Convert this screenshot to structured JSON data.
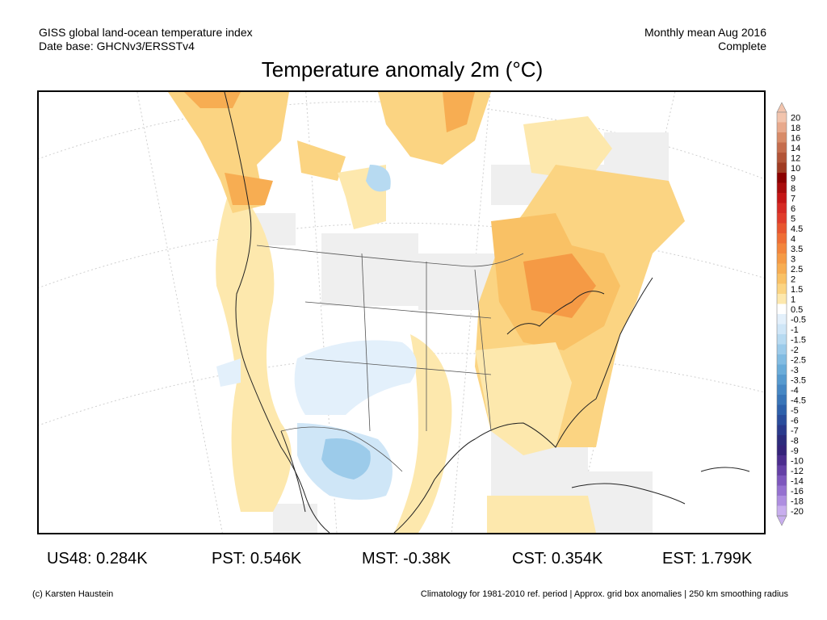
{
  "header": {
    "source_line1": "GISS global land-ocean temperature index",
    "source_line2": "Date base: GHCNv3/ERSSTv4",
    "period_line1": "Monthly mean Aug 2016",
    "period_line2": "Complete"
  },
  "title": "Temperature anomaly 2m (°C)",
  "colorbar": {
    "labels": [
      "20",
      "18",
      "16",
      "14",
      "12",
      "10",
      "9",
      "8",
      "7",
      "6",
      "5",
      "4.5",
      "4",
      "3.5",
      "3",
      "2.5",
      "2",
      "1.5",
      "1",
      "0.5",
      "-0.5",
      "-1",
      "-1.5",
      "-2",
      "-2.5",
      "-3",
      "-3.5",
      "-4",
      "-4.5",
      "-5",
      "-6",
      "-7",
      "-8",
      "-9",
      "-10",
      "-12",
      "-14",
      "-16",
      "-18",
      "-20"
    ],
    "colors": [
      "#f2c4ad",
      "#e8a98c",
      "#d88b68",
      "#c56d4d",
      "#b25437",
      "#a03b22",
      "#8b0000",
      "#a80c0c",
      "#c41616",
      "#d62a24",
      "#e03c2b",
      "#e8562f",
      "#ef6e35",
      "#f3853c",
      "#f59a45",
      "#f7ad52",
      "#f9c165",
      "#fbd482",
      "#fde8ad",
      "#ffffff",
      "#e3f0fb",
      "#cfe6f7",
      "#b7daf1",
      "#9ccbea",
      "#82bce2",
      "#6aacd9",
      "#569acf",
      "#4687c4",
      "#3975b8",
      "#2e61ab",
      "#2a4d9c",
      "#2a3a8c",
      "#2c2b7c",
      "#34237a",
      "#4b2d8e",
      "#6440a6",
      "#7d57bd",
      "#9571d0",
      "#ae8ee0",
      "#c8aeee"
    ]
  },
  "regional_anomalies": [
    {
      "region": "US48",
      "value": "0.284K"
    },
    {
      "region": "PST",
      "value": "0.546K"
    },
    {
      "region": "MST",
      "value": "-0.38K"
    },
    {
      "region": "CST",
      "value": "0.354K"
    },
    {
      "region": "EST",
      "value": "1.799K"
    }
  ],
  "footer": {
    "credit": "(c) Karsten Haustein",
    "note": "Climatology for 1981-2010 ref. period | Approx. grid box anomalies | 250 km smoothing radius"
  }
}
